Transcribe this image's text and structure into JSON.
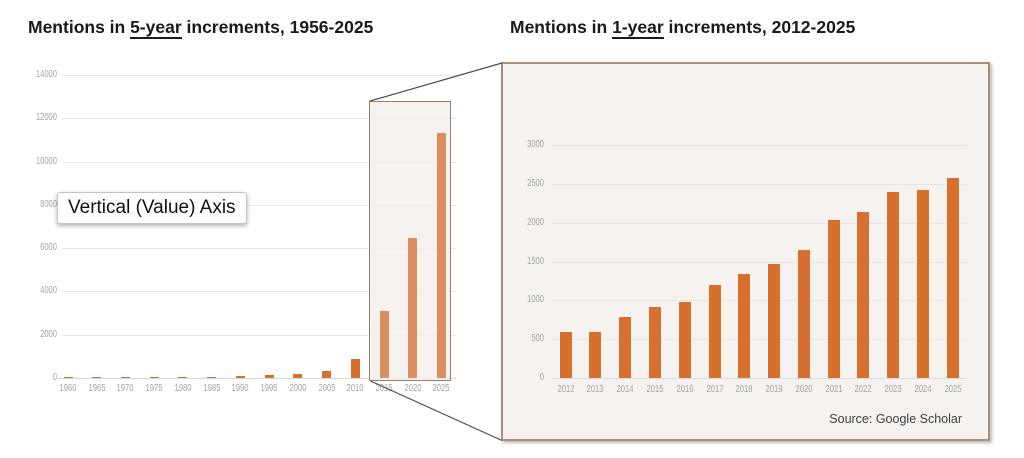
{
  "left_chart": {
    "title_parts": [
      "Mentions in ",
      "5-year",
      " increments, 1956-2025"
    ]
  },
  "right_chart": {
    "title_parts": [
      "Mentions in ",
      "1-year",
      " increments, 2012-2025"
    ],
    "source": "Source: Google Scholar"
  },
  "tooltip": {
    "text": "Vertical (Value) Axis"
  },
  "colors": {
    "bar": "#D8702D",
    "bar_highlight": "#DC8F5E",
    "panel_fill": "#F5F2EF",
    "panel_border": "#A78F7C",
    "zoom_box_border": "#9F7F63",
    "gridline": "#E4E4E4",
    "axis_line": "#D9D9D9",
    "tick_label": "#A3A3A3",
    "connector": "#4D4D4D"
  },
  "chart_data": [
    {
      "type": "bar",
      "title": "Mentions in 5-year increments, 1956-2025",
      "categories": [
        "1960",
        "1965",
        "1970",
        "1975",
        "1980",
        "1985",
        "1990",
        "1995",
        "2000",
        "2005",
        "2010",
        "2015",
        "2020",
        "2025"
      ],
      "values": [
        50,
        50,
        55,
        55,
        60,
        60,
        90,
        150,
        190,
        330,
        870,
        3100,
        6450,
        11300
      ],
      "y_ticks": [
        0,
        2000,
        4000,
        6000,
        8000,
        10000,
        12000,
        14000
      ],
      "ylim": [
        0,
        14000
      ],
      "xlabel": "",
      "ylabel": "",
      "grid": true,
      "legend": false,
      "highlight": {
        "categories": [
          "2015",
          "2020",
          "2025"
        ],
        "note": "boxed region magnified into right chart"
      }
    },
    {
      "type": "bar",
      "title": "Mentions in 1-year increments, 2012-2025",
      "categories": [
        "2012",
        "2013",
        "2014",
        "2015",
        "2016",
        "2017",
        "2018",
        "2019",
        "2020",
        "2021",
        "2022",
        "2023",
        "2024",
        "2025"
      ],
      "values": [
        590,
        590,
        780,
        910,
        980,
        1200,
        1340,
        1470,
        1650,
        2030,
        2140,
        2390,
        2420,
        2570
      ],
      "y_ticks": [
        0,
        500,
        1000,
        1500,
        2000,
        2500,
        3000
      ],
      "ylim": [
        0,
        3000
      ],
      "xlabel": "",
      "ylabel": "",
      "grid": true,
      "legend": false,
      "source": "Source: Google Scholar"
    }
  ]
}
